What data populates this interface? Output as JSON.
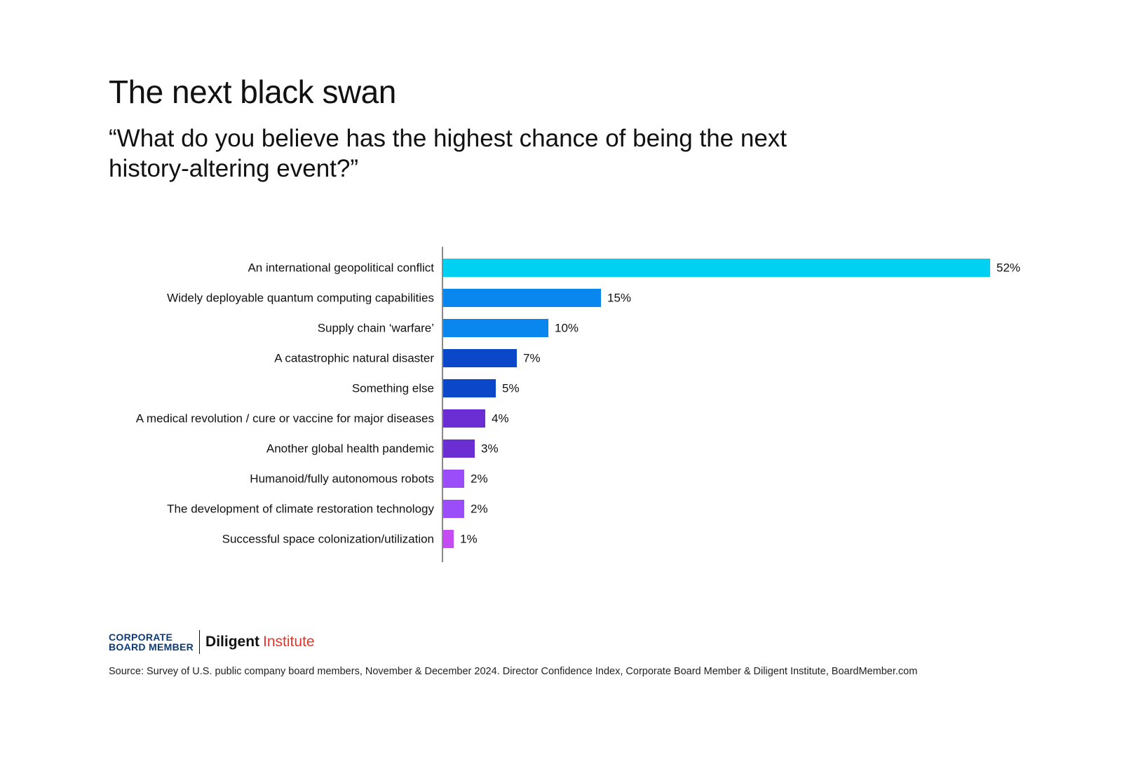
{
  "title": "The next black swan",
  "subtitle": "“What do you believe has the highest chance of being the next history-altering event?”",
  "chart_data": {
    "type": "bar",
    "orientation": "horizontal",
    "categories": [
      "An international geopolitical conflict",
      "Widely deployable quantum computing capabilities",
      "Supply chain ‘warfare’",
      "A catastrophic natural disaster",
      "Something else",
      "A medical revolution / cure or vaccine for major diseases",
      "Another global health pandemic",
      "Humanoid/fully autonomous robots",
      "The development of climate restoration technology",
      "Successful space colonization/utilization"
    ],
    "values": [
      52,
      15,
      10,
      7,
      5,
      4,
      3,
      2,
      2,
      1
    ],
    "value_labels": [
      "52%",
      "15%",
      "10%",
      "7%",
      "5%",
      "4%",
      "3%",
      "2%",
      "2%",
      "1%"
    ],
    "colors": [
      "#00d1f2",
      "#0a87ee",
      "#0a87ee",
      "#0b47c9",
      "#0b47c9",
      "#6a2ed3",
      "#6a2ed3",
      "#9b4dfa",
      "#9b4dfa",
      "#c44cf2"
    ],
    "unit": "%",
    "xlim": [
      0,
      52
    ],
    "grid": false,
    "legend": "none"
  },
  "logos": {
    "cbm_line1": "CORPORATE",
    "cbm_line2": "BOARD MEMBER",
    "diligent_word": "Diligent",
    "institute_word": "Institute",
    "diligent_color": "#111111",
    "institute_color": "#e8332a",
    "cbm_color": "#0b3b7a"
  },
  "source": "Source: Survey of U.S. public company board members, November & December 2024. Director Confidence Index, Corporate Board Member & Diligent Institute, BoardMember.com"
}
